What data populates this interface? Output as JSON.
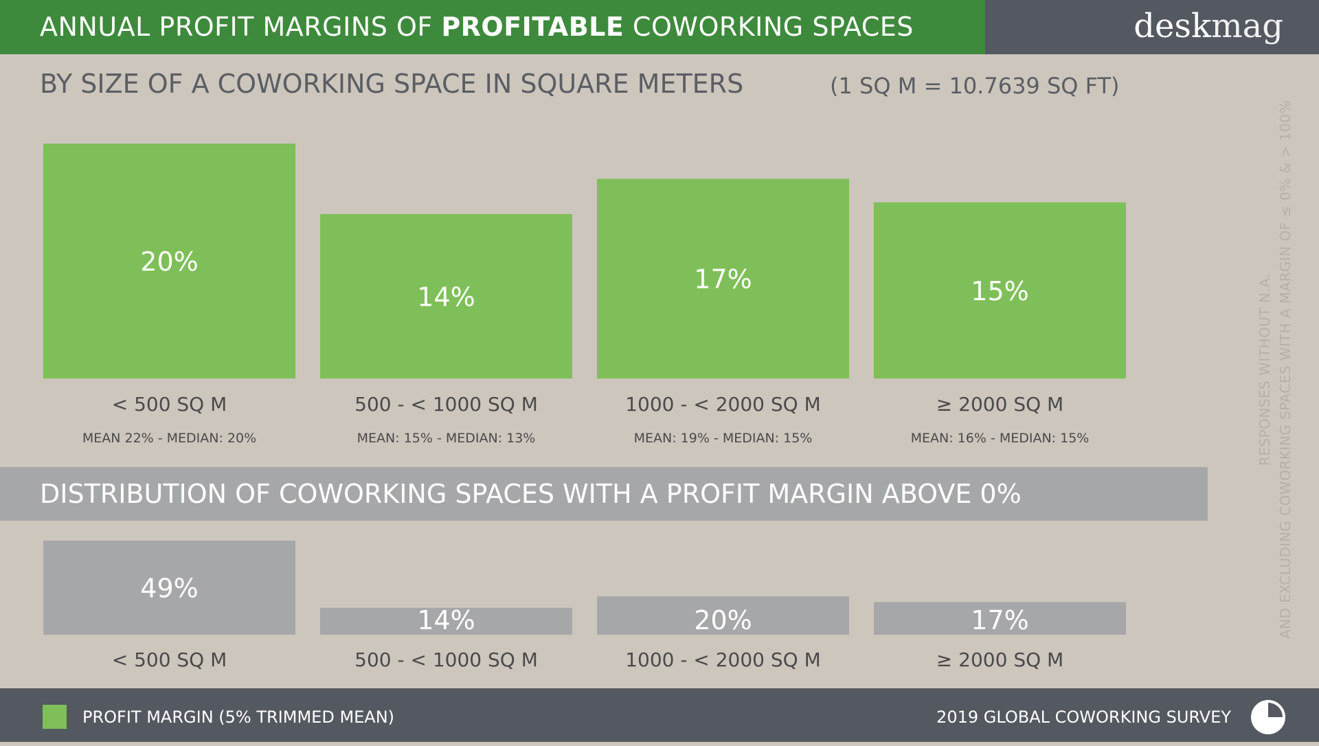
{
  "header": {
    "title_prefix": "ANNUAL PROFIT MARGINS OF ",
    "title_bold": "PROFITABLE",
    "title_suffix": " COWORKING SPACES",
    "logo_a": "desk",
    "logo_b": "mag"
  },
  "subtitle": "BY SIZE OF A COWORKING SPACE IN SQUARE METERS",
  "subtitle_note": "(1 SQ M = 10.7639 SQ FT)",
  "side_note": {
    "line1": "RESPONSES WITHOUT N.A.",
    "line2": "AND EXCLUDING COWORKING SPACES WITH A MARGIN OF ≤ 0% & > 100%"
  },
  "distribution_title": "DISTRIBUTION OF COWORKING SPACES WITH A PROFIT MARGIN ABOVE 0%",
  "footer": {
    "legend_label": "PROFIT MARGIN (5% TRIMMED MEAN)",
    "survey": "2019 GLOBAL COWORKING SURVEY"
  },
  "colors": {
    "margin_bar": "#7fbf59",
    "distribution_bar": "#a6a7a8",
    "header_green": "#3e8a3c",
    "dark_band": "#545861"
  },
  "icons": {
    "footer": "pie-chart-icon"
  },
  "chart_data": [
    {
      "type": "bar",
      "title": "BY SIZE OF A COWORKING SPACE IN SQUARE METERS",
      "categories": [
        "< 500 SQ M",
        "500 - < 1000 SQ M",
        "1000 - < 2000 SQ M",
        "≥ 2000 SQ M"
      ],
      "values": [
        20,
        14,
        17,
        15
      ],
      "labels": [
        "20%",
        "14%",
        "17%",
        "15%"
      ],
      "stats": [
        "MEAN  22% - MEDIAN: 20%",
        "MEAN:  15% - MEDIAN: 13%",
        "MEAN:  19% - MEDIAN: 15%",
        "MEAN: 16% - MEDIAN: 15%"
      ],
      "series": [
        {
          "name": "PROFIT MARGIN (5% TRIMMED MEAN)",
          "values": [
            20,
            14,
            17,
            15
          ]
        }
      ],
      "legend": "bottom-left",
      "grid": false
    },
    {
      "type": "bar",
      "title": "DISTRIBUTION OF COWORKING SPACES WITH A PROFIT MARGIN ABOVE 0%",
      "categories": [
        "< 500 SQ M",
        "500 - < 1000 SQ M",
        "1000 - < 2000 SQ M",
        "≥ 2000 SQ M"
      ],
      "values": [
        49,
        14,
        20,
        17
      ],
      "labels": [
        "49%",
        "14%",
        "20%",
        "17%"
      ],
      "grid": false
    }
  ]
}
